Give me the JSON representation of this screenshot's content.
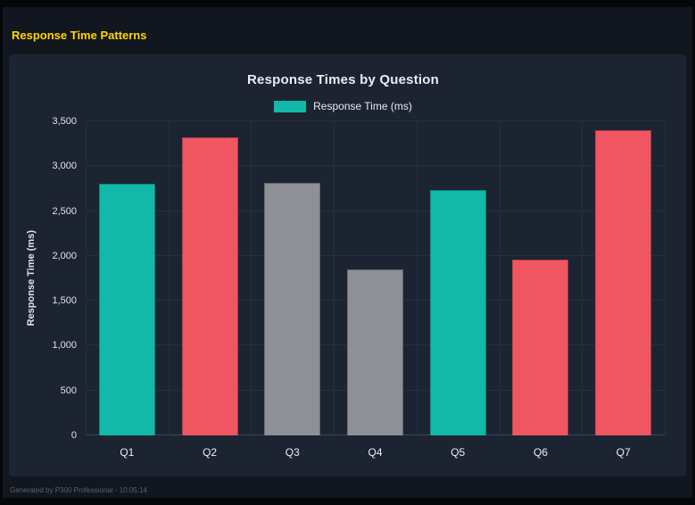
{
  "window": {
    "title": "Response Time Patterns",
    "footer": "Generated by P300 Professional - 10:05:14"
  },
  "colors": {
    "accent_title": "#ffd700",
    "page_bg": "#12161f",
    "panel_bg": "#1c2432",
    "teal": "#12b8a8",
    "red": "#ef5661",
    "gray": "#8e9096"
  },
  "chart_data": {
    "type": "bar",
    "title": "Response Times by Question",
    "legend": [
      {
        "label": "Response Time (ms)",
        "color": "#12b8a8"
      }
    ],
    "legend_position": "top",
    "categories": [
      "Q1",
      "Q2",
      "Q3",
      "Q4",
      "Q5",
      "Q6",
      "Q7"
    ],
    "values": [
      2800,
      3320,
      2810,
      1850,
      2730,
      1960,
      3400
    ],
    "bar_colors": [
      "#12b8a8",
      "#ef5661",
      "#8e9096",
      "#8e9096",
      "#12b8a8",
      "#ef5661",
      "#ef5661"
    ],
    "xlabel": "",
    "ylabel": "Response Time (ms)",
    "ylim": [
      0,
      3500
    ],
    "ytick_step": 500,
    "yticks": [
      "0",
      "500",
      "1,000",
      "1,500",
      "2,000",
      "2,500",
      "3,000",
      "3,500"
    ],
    "grid": true
  }
}
